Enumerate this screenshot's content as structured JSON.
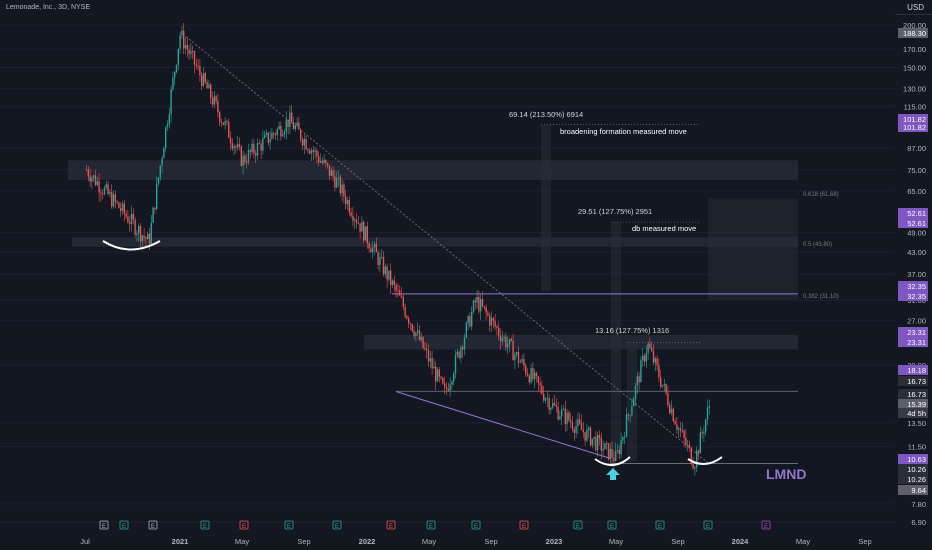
{
  "header": {
    "title": "Lemonade, Inc., 3D, NYSE",
    "currency": "USD"
  },
  "chart_data": {
    "type": "candlestick",
    "symbol": "LMND",
    "exchange": "NYSE",
    "timeframe": "3D",
    "y_scale": "log",
    "ylim": [
      6.4,
      230
    ],
    "x_ticks": [
      "Jul",
      "2021",
      "May",
      "Sep",
      "2022",
      "May",
      "Sep",
      "2023",
      "May",
      "Sep",
      "2024",
      "May",
      "Sep"
    ],
    "y_ticks": [
      "200.00",
      "170.00",
      "150.00",
      "130.00",
      "115.00",
      "87.00",
      "75.00",
      "65.00",
      "49.00",
      "43.00",
      "37.00",
      "31.00",
      "27.00",
      "20.00",
      "13.50",
      "11.50",
      "7.80",
      "6.90"
    ],
    "price_markers": [
      {
        "value": "188.30",
        "color": "#5d606b"
      },
      {
        "value": "101.82",
        "color": "#7e57c2"
      },
      {
        "value": "101.82",
        "color": "#7e57c2"
      },
      {
        "value": "52.61",
        "color": "#7e57c2"
      },
      {
        "value": "52.61",
        "color": "#7e57c2"
      },
      {
        "value": "32.35",
        "color": "#7e57c2"
      },
      {
        "value": "32.35",
        "color": "#7e57c2"
      },
      {
        "value": "23.31",
        "color": "#7e57c2"
      },
      {
        "value": "23.31",
        "color": "#7e57c2"
      },
      {
        "value": "18.18",
        "color": "#7e57c2"
      },
      {
        "value": "16.73",
        "color": "#2a2e39"
      },
      {
        "value": "16.73",
        "color": "#2a2e39"
      },
      {
        "value": "15.39",
        "color": "#5d606b"
      },
      {
        "value": "4d 5h",
        "color": "#363a45"
      },
      {
        "value": "10.63",
        "color": "#7e57c2"
      },
      {
        "value": "10.26",
        "color": "#2a2e39"
      },
      {
        "value": "10.26",
        "color": "#2a2e39"
      },
      {
        "value": "9.64",
        "color": "#5d606b"
      }
    ],
    "annotations": [
      "69.14 (213.50%) 6914",
      "broadening formation measured move",
      "29.51 (127.75%) 2951",
      "db measured move",
      "13.16 (127.75%) 1316",
      "0.618 (61.68)",
      "0.5 (43.80)",
      "0.382 (31.10)"
    ],
    "ticker_label": "LMND",
    "events": [
      "E",
      "E",
      "E",
      "E",
      "E",
      "E",
      "E",
      "E",
      "E",
      "E",
      "E",
      "E",
      "E",
      "E",
      "E",
      "E",
      "E"
    ],
    "key_prices": [
      {
        "date": "2020-07",
        "price": 75
      },
      {
        "date": "2020-11",
        "price": 46
      },
      {
        "date": "2021-01",
        "price": 188.3
      },
      {
        "date": "2021-05",
        "price": 80
      },
      {
        "date": "2021-08",
        "price": 105
      },
      {
        "date": "2021-11",
        "price": 70
      },
      {
        "date": "2022-03",
        "price": 32
      },
      {
        "date": "2022-06",
        "price": 16.5
      },
      {
        "date": "2022-08",
        "price": 31
      },
      {
        "date": "2022-11",
        "price": 20
      },
      {
        "date": "2023-01",
        "price": 15
      },
      {
        "date": "2023-05",
        "price": 10.6
      },
      {
        "date": "2023-07",
        "price": 23
      },
      {
        "date": "2023-09",
        "price": 13
      },
      {
        "date": "2023-10",
        "price": 10.3
      },
      {
        "date": "2023-11",
        "price": 15.39
      }
    ],
    "colors": {
      "up": "#26a69a",
      "down": "#ef5350",
      "background": "#131722",
      "accent": "#7e57c2",
      "ticker": "#9575cd"
    }
  }
}
